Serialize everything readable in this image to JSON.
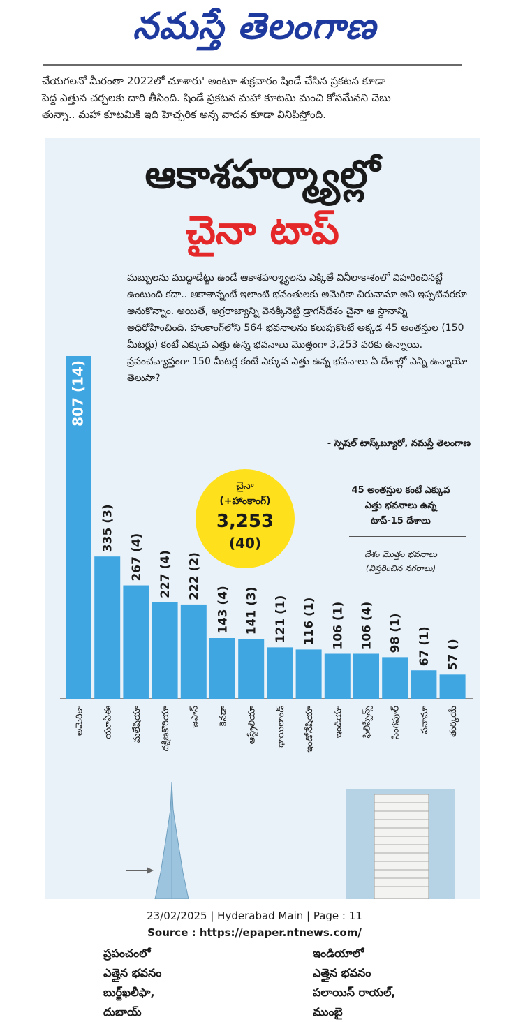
{
  "masthead": {
    "title": "నమస్తే తెలంగాణ"
  },
  "intro": {
    "lines": [
      "చేయగలనో మీరంతా 2022లో చూశారు' అంటూ శుక్రవారం షిండే చేసిన ప్రకటన కూడా",
      "పెద్ద ఎత్తున చర్చలకు దారి తీసింది. షిండే ప్రకటన మహా కూటమి మంచి కోసమేనని చెబు",
      "తున్నా.. మహా కూటమికి ఇది హెచ్చరిక అన్న వాదన కూడా వినిపిస్తోంది."
    ]
  },
  "article": {
    "headline1": "ఆకాశహర్మ్యాల్లో",
    "headline2": "చైనా టాప్",
    "body": "మబ్బులను ముద్దాడేట్టు ఉండే ఆకాశహర్మ్యాలను ఎక్కితే వినీలాకాశంలో విహరించినట్టే ఉంటుంది కదా.. ఆకాశాన్నంటే ఇలాంటి భవంతులకు అమెరికా చిరునామా అని ఇప్పటివరకూ అనుకొన్నాం. అయితే, అగ్రరాజ్యాన్ని వెనక్కినెట్టి డ్రాగన్‌దేశం చైనా ఆ స్థానాన్ని అధిరోహించింది. హాంకాంగ్‌లోని 564 భవనాలను కలుపుకొంటే అక్కడ 45 అంతస్తుల (150 మీటర్లు) కంటే ఎక్కువ ఎత్తు ఉన్న భవనాలు మొత్తంగా 3,253 వరకు ఉన్నాయి. ప్రపంచవ్యాప్తంగా 150 మీటర్ల కంటే ఎక్కువ ఎత్తు ఉన్న భవనాలు ఏ దేశాల్లో ఎన్ని ఉన్నాయో తెలుసా?",
    "byline": "- స్పెషల్ టాస్క్‌బ్యూరో, నమస్తే తెలంగాణ"
  },
  "china_callout": {
    "line1": "చైనా",
    "line2": "(+హాంకాంగ్)",
    "value": "3,253",
    "cities": "(40)"
  },
  "legend": {
    "title_lines": [
      "45 అంతస్తుల కంటే ఎక్కువ",
      "ఎత్తు భవనాలు ఉన్న",
      "టాప్-15 దేశాలు"
    ],
    "subtitle_lines": [
      "దేశం మొత్తం భవనాలు",
      "(విస్తరించిన నగరాలు)"
    ]
  },
  "colors": {
    "bar": "#3fa6e2",
    "accent_red": "#e4282a",
    "masthead_blue": "#1f3a9e",
    "callout_yellow": "#ffe01c",
    "panel": "#eaf2f9"
  },
  "chart_data": {
    "type": "bar",
    "categories": [
      "అమెరికా",
      "యూఏఈ",
      "మలేషియా",
      "దక్షిణకొరియా",
      "జపాన్",
      "కెనడా",
      "ఆస్ట్రేలియా",
      "థాయిలాండ్",
      "ఇండోనేషియా",
      "ఇండియా",
      "ఫిలిప్పీన్స్",
      "సింగపూర్",
      "పనామా",
      "తుర్కియే"
    ],
    "values": [
      807,
      335,
      267,
      227,
      222,
      143,
      141,
      121,
      116,
      106,
      106,
      98,
      67,
      57
    ],
    "labels": [
      "807 (14)",
      "335 (3)",
      "267 (4)",
      "227 (4)",
      "222 (2)",
      "143 (4)",
      "141 (3)",
      "121 (1)",
      "116 (1)",
      "106 (1)",
      "106 (4)",
      "98 (1)",
      "67 (1)",
      "57 ()"
    ],
    "ylim": [
      0,
      807
    ],
    "grid": false,
    "title": "",
    "xlabel": "",
    "ylabel": ""
  },
  "bottom": {
    "world_lines": [
      "ప్రపంచంలో",
      "ఎత్తైన భవనం",
      "బుర్జ్‌ఖలీఫా,",
      "దుబాయ్"
    ],
    "india_lines": [
      "ఇండియాలో",
      "ఎత్తైన భవనం",
      "పలాయిస్ రాయల్,",
      "ముంబై"
    ]
  },
  "footer": {
    "line1": "23/02/2025 | Hyderabad Main | Page : 11",
    "line2": "Source : https://epaper.ntnews.com/"
  }
}
